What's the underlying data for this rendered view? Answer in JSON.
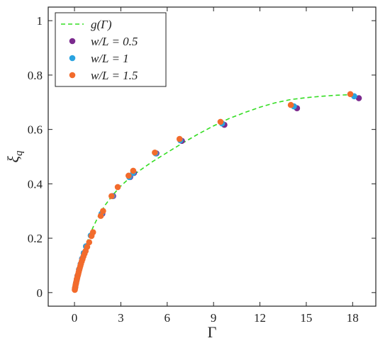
{
  "chart_data": {
    "type": "scatter",
    "title": "",
    "xlabel": "Γ",
    "ylabel": "ξ_q",
    "xlim": [
      -1.7,
      19.5
    ],
    "ylim": [
      -0.05,
      1.05
    ],
    "xticks": [
      0,
      3,
      6,
      9,
      12,
      15,
      18
    ],
    "xtick_labels": [
      "0",
      "3",
      "6",
      "9",
      "12",
      "15",
      "18"
    ],
    "yticks": [
      0,
      0.2,
      0.4,
      0.6,
      0.8,
      1
    ],
    "ytick_labels": [
      "0",
      "0.2",
      "0.4",
      "0.6",
      "0.8",
      "1"
    ],
    "grid": false,
    "legend_position": "top-left",
    "curve": {
      "name": "g(Γ)",
      "style": "dashed",
      "color": "#33dd22",
      "x": [
        0,
        0.05,
        0.1,
        0.2,
        0.3,
        0.4,
        0.5,
        0.6,
        0.8,
        1.0,
        1.2,
        1.5,
        1.8,
        2.0,
        2.5,
        3.0,
        3.5,
        4.0,
        5.0,
        6.0,
        7.0,
        8.0,
        9.0,
        10.0,
        11.0,
        12.0,
        13.0,
        14.0,
        15.0,
        16.0,
        17.0,
        18.0
      ],
      "y": [
        0.005,
        0.018,
        0.033,
        0.06,
        0.085,
        0.107,
        0.128,
        0.147,
        0.182,
        0.213,
        0.24,
        0.275,
        0.305,
        0.323,
        0.36,
        0.392,
        0.418,
        0.44,
        0.48,
        0.515,
        0.55,
        0.583,
        0.613,
        0.64,
        0.662,
        0.682,
        0.698,
        0.71,
        0.717,
        0.722,
        0.726,
        0.728
      ]
    },
    "series": [
      {
        "name": "w/L = 0.5",
        "color": "#7b2a8e",
        "x": [
          0.05,
          0.1,
          0.15,
          0.2,
          0.3,
          0.4,
          0.5,
          0.6,
          0.75,
          1.1,
          1.8,
          2.5,
          3.6,
          3.85,
          5.3,
          6.95,
          9.7,
          14.4,
          18.4
        ],
        "y": [
          0.02,
          0.035,
          0.048,
          0.062,
          0.085,
          0.105,
          0.125,
          0.145,
          0.17,
          0.21,
          0.29,
          0.355,
          0.425,
          0.44,
          0.512,
          0.558,
          0.617,
          0.678,
          0.715
        ]
      },
      {
        "name": "w/L = 1",
        "color": "#2aa3e0",
        "x": [
          0.05,
          0.1,
          0.15,
          0.2,
          0.3,
          0.4,
          0.5,
          0.6,
          0.75,
          1.05,
          1.75,
          2.45,
          3.55,
          3.8,
          5.25,
          6.85,
          9.55,
          14.2,
          18.1
        ],
        "y": [
          0.02,
          0.035,
          0.048,
          0.062,
          0.085,
          0.105,
          0.125,
          0.145,
          0.17,
          0.21,
          0.29,
          0.355,
          0.425,
          0.44,
          0.512,
          0.56,
          0.622,
          0.685,
          0.722
        ]
      },
      {
        "name": "w/L = 1.5",
        "color": "#f26b2c",
        "x": [
          0.02,
          0.03,
          0.05,
          0.07,
          0.09,
          0.11,
          0.13,
          0.15,
          0.18,
          0.21,
          0.24,
          0.27,
          0.3,
          0.34,
          0.38,
          0.42,
          0.47,
          0.52,
          0.58,
          0.65,
          0.72,
          0.82,
          0.95,
          1.1,
          1.2,
          1.7,
          1.85,
          2.4,
          2.8,
          3.5,
          3.8,
          5.2,
          6.8,
          9.45,
          14.0,
          17.85
        ],
        "y": [
          0.01,
          0.015,
          0.02,
          0.027,
          0.032,
          0.038,
          0.043,
          0.049,
          0.055,
          0.062,
          0.068,
          0.075,
          0.082,
          0.09,
          0.098,
          0.106,
          0.115,
          0.123,
          0.133,
          0.143,
          0.153,
          0.168,
          0.185,
          0.208,
          0.222,
          0.282,
          0.3,
          0.355,
          0.388,
          0.43,
          0.448,
          0.515,
          0.565,
          0.628,
          0.69,
          0.73
        ]
      }
    ]
  }
}
